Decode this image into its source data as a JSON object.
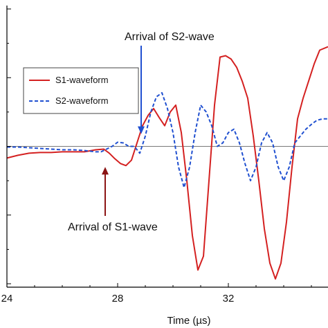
{
  "chart_data": {
    "type": "line",
    "title": "",
    "xlabel": "Time (µs)",
    "ylabel": "",
    "xlim": [
      24,
      35.6
    ],
    "ylim": [
      -2.05,
      2.05
    ],
    "x_ticks": [
      24,
      28,
      32
    ],
    "y_ticks": [
      -2,
      -1,
      0,
      1,
      2
    ],
    "grid": false,
    "zero_line": true,
    "legend_position": "left",
    "colors": {
      "S1": "#d42020",
      "S2": "#1f4fd0",
      "zero": "#777777",
      "axis": "#000000"
    },
    "series": [
      {
        "name": "S1-waveform",
        "style": "solid",
        "x": [
          24,
          24.4,
          24.8,
          25.2,
          25.6,
          26,
          26.4,
          26.8,
          27.2,
          27.5,
          27.7,
          27.9,
          28.1,
          28.3,
          28.5,
          28.7,
          28.9,
          29.1,
          29.3,
          29.5,
          29.7,
          29.9,
          30.1,
          30.3,
          30.5,
          30.7,
          30.9,
          31.1,
          31.3,
          31.5,
          31.7,
          31.9,
          32.1,
          32.3,
          32.5,
          32.7,
          32.9,
          33.1,
          33.3,
          33.5,
          33.7,
          33.9,
          34.1,
          34.3,
          34.5,
          34.7,
          34.9,
          35.1,
          35.3,
          35.6
        ],
        "y": [
          -0.17,
          -0.13,
          -0.1,
          -0.09,
          -0.09,
          -0.08,
          -0.08,
          -0.08,
          -0.05,
          -0.04,
          -0.1,
          -0.18,
          -0.25,
          -0.28,
          -0.2,
          0.05,
          0.3,
          0.45,
          0.55,
          0.42,
          0.3,
          0.5,
          0.6,
          0.2,
          -0.5,
          -1.3,
          -1.8,
          -1.6,
          -0.5,
          0.6,
          1.3,
          1.32,
          1.27,
          1.15,
          0.95,
          0.7,
          0.15,
          -0.5,
          -1.2,
          -1.7,
          -1.93,
          -1.7,
          -1.1,
          -0.3,
          0.4,
          0.7,
          0.95,
          1.2,
          1.4,
          1.45
        ]
      },
      {
        "name": "S2-waveform",
        "style": "dashed",
        "x": [
          24,
          24.4,
          24.8,
          25.2,
          25.6,
          26,
          26.4,
          26.8,
          27.2,
          27.4,
          27.6,
          27.8,
          28,
          28.2,
          28.4,
          28.6,
          28.8,
          29,
          29.2,
          29.4,
          29.6,
          29.8,
          30,
          30.2,
          30.4,
          30.6,
          30.8,
          31,
          31.2,
          31.4,
          31.6,
          31.8,
          32,
          32.2,
          32.4,
          32.6,
          32.8,
          33,
          33.2,
          33.4,
          33.6,
          33.8,
          34,
          34.2,
          34.4,
          34.6,
          34.8,
          35,
          35.2,
          35.4,
          35.6
        ],
        "y": [
          -0.01,
          -0.01,
          -0.02,
          -0.03,
          -0.04,
          -0.05,
          -0.05,
          -0.06,
          -0.08,
          -0.08,
          -0.04,
          0.0,
          0.06,
          0.05,
          0.0,
          0.0,
          -0.1,
          0.15,
          0.5,
          0.72,
          0.78,
          0.55,
          0.2,
          -0.3,
          -0.6,
          -0.3,
          0.2,
          0.6,
          0.5,
          0.3,
          0.0,
          0.05,
          0.2,
          0.25,
          0.05,
          -0.25,
          -0.5,
          -0.3,
          0.05,
          0.2,
          0.05,
          -0.3,
          -0.5,
          -0.3,
          0.05,
          0.15,
          0.25,
          0.32,
          0.38,
          0.4,
          0.4
        ]
      }
    ],
    "annotations": [
      {
        "text": "Arrival of S2-wave",
        "x": 28.85,
        "y": 0.18,
        "color": "#1f4fd0"
      },
      {
        "text": "Arrival of S1-wave",
        "x": 27.55,
        "y": -0.3,
        "color": "#8b1414"
      }
    ]
  }
}
